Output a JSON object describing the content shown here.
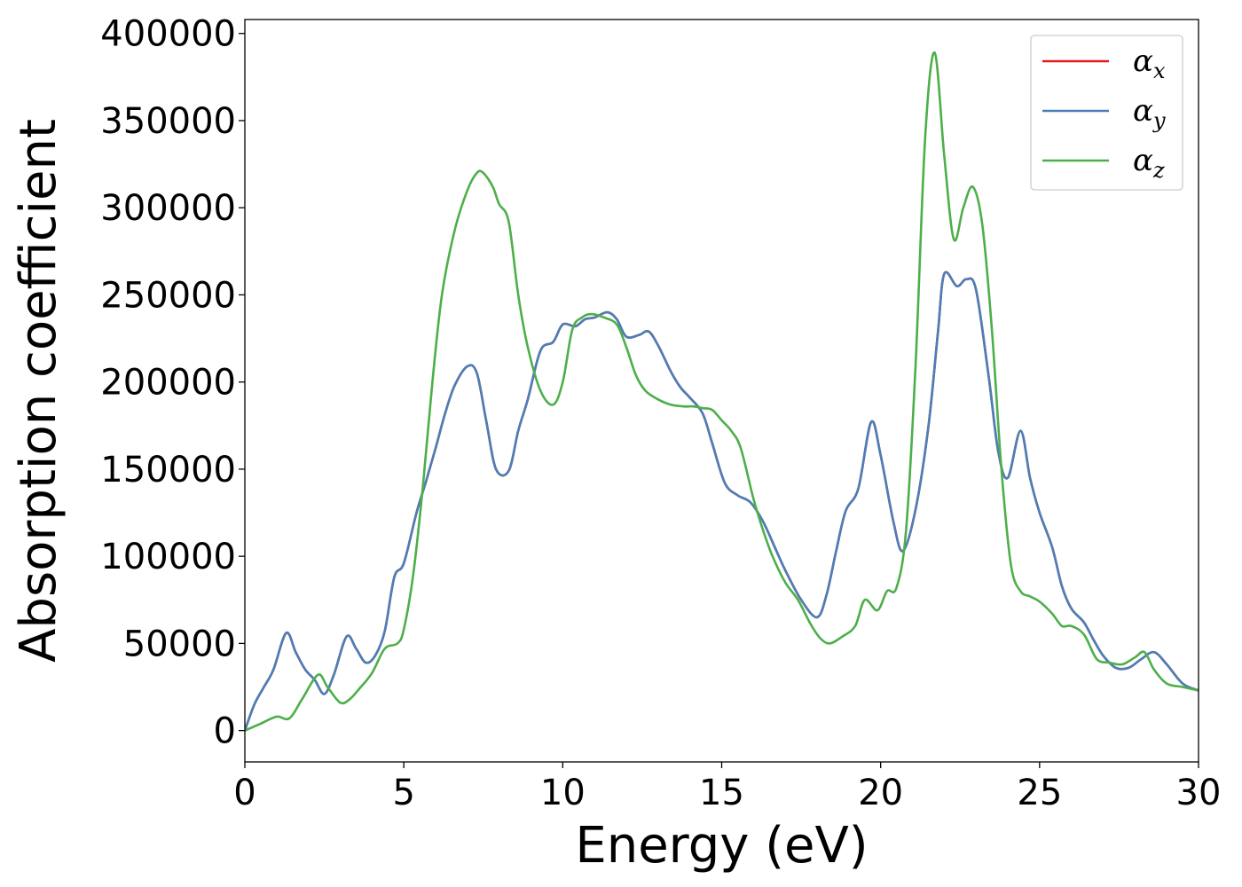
{
  "chart_data": {
    "type": "line",
    "title": "",
    "xlabel": "Energy (eV)",
    "ylabel": "Absorption coefficient",
    "xlim": [
      0,
      30
    ],
    "ylim": [
      -18000,
      408000
    ],
    "xticks": [
      0,
      5,
      10,
      15,
      20,
      25,
      30
    ],
    "yticks": [
      0,
      50000,
      100000,
      150000,
      200000,
      250000,
      300000,
      350000,
      400000
    ],
    "grid": false,
    "legend_position": "top-right",
    "series": [
      {
        "name": "αx",
        "legend_symbol": "α",
        "legend_subscript": "x",
        "color": "#e41a1c",
        "x": [
          0,
          0.3,
          0.6,
          0.9,
          1.3,
          1.6,
          1.9,
          2.2,
          2.5,
          2.8,
          3.2,
          3.5,
          3.8,
          4.1,
          4.4,
          4.7,
          5.0,
          5.4,
          5.7,
          6.0,
          6.3,
          6.6,
          7.0,
          7.3,
          7.6,
          7.9,
          8.3,
          8.6,
          8.9,
          9.3,
          9.7,
          10.0,
          10.4,
          10.7,
          11.0,
          11.4,
          11.7,
          12.0,
          12.4,
          12.7,
          13.0,
          13.4,
          13.7,
          14.0,
          14.4,
          14.7,
          15.1,
          15.5,
          15.9,
          16.3,
          16.7,
          17.0,
          17.5,
          18.0,
          18.3,
          18.6,
          18.9,
          19.3,
          19.7,
          20.0,
          20.4,
          20.7,
          21.1,
          21.5,
          21.8,
          22.0,
          22.4,
          22.7,
          23.0,
          23.4,
          23.7,
          24.0,
          24.4,
          24.7,
          25.0,
          25.4,
          25.7,
          26.0,
          26.4,
          26.7,
          27.0,
          27.4,
          27.8,
          28.2,
          28.6,
          29.0,
          29.5,
          30.0
        ],
        "y": [
          0,
          15000,
          25000,
          35000,
          56000,
          45000,
          35000,
          29000,
          21000,
          32000,
          54000,
          47000,
          39000,
          43000,
          57000,
          88000,
          96000,
          125000,
          143000,
          162000,
          182000,
          198000,
          209000,
          205000,
          177000,
          150000,
          149000,
          172000,
          190000,
          218000,
          223000,
          233000,
          232000,
          236000,
          237000,
          240000,
          236000,
          226000,
          227000,
          229000,
          221000,
          206000,
          197000,
          191000,
          182000,
          165000,
          142000,
          135000,
          131000,
          120000,
          104000,
          92000,
          75000,
          65000,
          78000,
          103000,
          126000,
          139000,
          177000,
          158000,
          120000,
          103000,
          127000,
          174000,
          228000,
          262000,
          255000,
          259000,
          253000,
          203000,
          160000,
          145000,
          172000,
          145000,
          125000,
          105000,
          83000,
          70000,
          62000,
          52000,
          43000,
          36000,
          36000,
          41000,
          45000,
          38000,
          27000,
          23000
        ]
      },
      {
        "name": "αy",
        "legend_symbol": "α",
        "legend_subscript": "y",
        "color": "#4a7fb8",
        "x": [
          0,
          0.3,
          0.6,
          0.9,
          1.3,
          1.6,
          1.9,
          2.2,
          2.5,
          2.8,
          3.2,
          3.5,
          3.8,
          4.1,
          4.4,
          4.7,
          5.0,
          5.4,
          5.7,
          6.0,
          6.3,
          6.6,
          7.0,
          7.3,
          7.6,
          7.9,
          8.3,
          8.6,
          8.9,
          9.3,
          9.7,
          10.0,
          10.4,
          10.7,
          11.0,
          11.4,
          11.7,
          12.0,
          12.4,
          12.7,
          13.0,
          13.4,
          13.7,
          14.0,
          14.4,
          14.7,
          15.1,
          15.5,
          15.9,
          16.3,
          16.7,
          17.0,
          17.5,
          18.0,
          18.3,
          18.6,
          18.9,
          19.3,
          19.7,
          20.0,
          20.4,
          20.7,
          21.1,
          21.5,
          21.8,
          22.0,
          22.4,
          22.7,
          23.0,
          23.4,
          23.7,
          24.0,
          24.4,
          24.7,
          25.0,
          25.4,
          25.7,
          26.0,
          26.4,
          26.7,
          27.0,
          27.4,
          27.8,
          28.2,
          28.6,
          29.0,
          29.5,
          30.0
        ],
        "y": [
          0,
          15000,
          25000,
          35000,
          56000,
          45000,
          35000,
          29000,
          21000,
          32000,
          54000,
          47000,
          39000,
          43000,
          57000,
          88000,
          96000,
          125000,
          143000,
          162000,
          182000,
          198000,
          209000,
          205000,
          177000,
          150000,
          149000,
          172000,
          190000,
          218000,
          223000,
          233000,
          232000,
          236000,
          237000,
          240000,
          236000,
          226000,
          227000,
          229000,
          221000,
          206000,
          197000,
          191000,
          182000,
          165000,
          142000,
          135000,
          131000,
          120000,
          104000,
          92000,
          75000,
          65000,
          78000,
          103000,
          126000,
          139000,
          177000,
          158000,
          120000,
          103000,
          127000,
          174000,
          228000,
          262000,
          255000,
          259000,
          253000,
          203000,
          160000,
          145000,
          172000,
          145000,
          125000,
          105000,
          83000,
          70000,
          62000,
          52000,
          43000,
          36000,
          36000,
          41000,
          45000,
          38000,
          27000,
          23000
        ]
      },
      {
        "name": "αz",
        "legend_symbol": "α",
        "legend_subscript": "z",
        "color": "#4daf4a",
        "x": [
          0,
          0.5,
          1.0,
          1.4,
          1.8,
          2.3,
          2.6,
          3.0,
          3.3,
          3.6,
          4.0,
          4.4,
          4.8,
          5.0,
          5.3,
          5.6,
          5.9,
          6.2,
          6.6,
          7.0,
          7.3,
          7.5,
          7.8,
          8.0,
          8.3,
          8.6,
          8.9,
          9.3,
          9.7,
          10.0,
          10.3,
          10.6,
          10.9,
          11.3,
          11.7,
          12.0,
          12.3,
          12.6,
          13.0,
          13.4,
          13.8,
          14.1,
          14.4,
          14.7,
          15.0,
          15.3,
          15.6,
          16.0,
          16.3,
          16.6,
          17.0,
          17.4,
          17.8,
          18.1,
          18.4,
          18.8,
          19.2,
          19.5,
          19.9,
          20.2,
          20.5,
          20.8,
          21.1,
          21.4,
          21.7,
          22.0,
          22.3,
          22.6,
          22.9,
          23.2,
          23.5,
          23.8,
          24.1,
          24.4,
          24.7,
          25.0,
          25.4,
          25.7,
          26.0,
          26.4,
          26.8,
          27.2,
          27.6,
          28.0,
          28.3,
          28.6,
          29.0,
          29.5,
          30.0
        ],
        "y": [
          0,
          4000,
          8000,
          7000,
          18000,
          32000,
          25000,
          16000,
          18000,
          24000,
          33000,
          47000,
          50000,
          58000,
          90000,
          140000,
          200000,
          250000,
          287000,
          310000,
          320000,
          320000,
          312000,
          302000,
          292000,
          250000,
          220000,
          195000,
          187000,
          200000,
          230000,
          237000,
          239000,
          237000,
          233000,
          220000,
          204000,
          195000,
          190000,
          187000,
          186000,
          186000,
          185000,
          184000,
          178000,
          172000,
          162000,
          133000,
          115000,
          100000,
          85000,
          75000,
          61000,
          53000,
          50000,
          54000,
          60000,
          75000,
          69000,
          80000,
          82000,
          115000,
          210000,
          340000,
          389000,
          330000,
          282000,
          300000,
          312000,
          290000,
          230000,
          150000,
          95000,
          80000,
          77000,
          74000,
          67000,
          60000,
          60000,
          55000,
          41000,
          39000,
          38000,
          42000,
          45000,
          35000,
          27000,
          25000,
          23000
        ]
      }
    ]
  }
}
